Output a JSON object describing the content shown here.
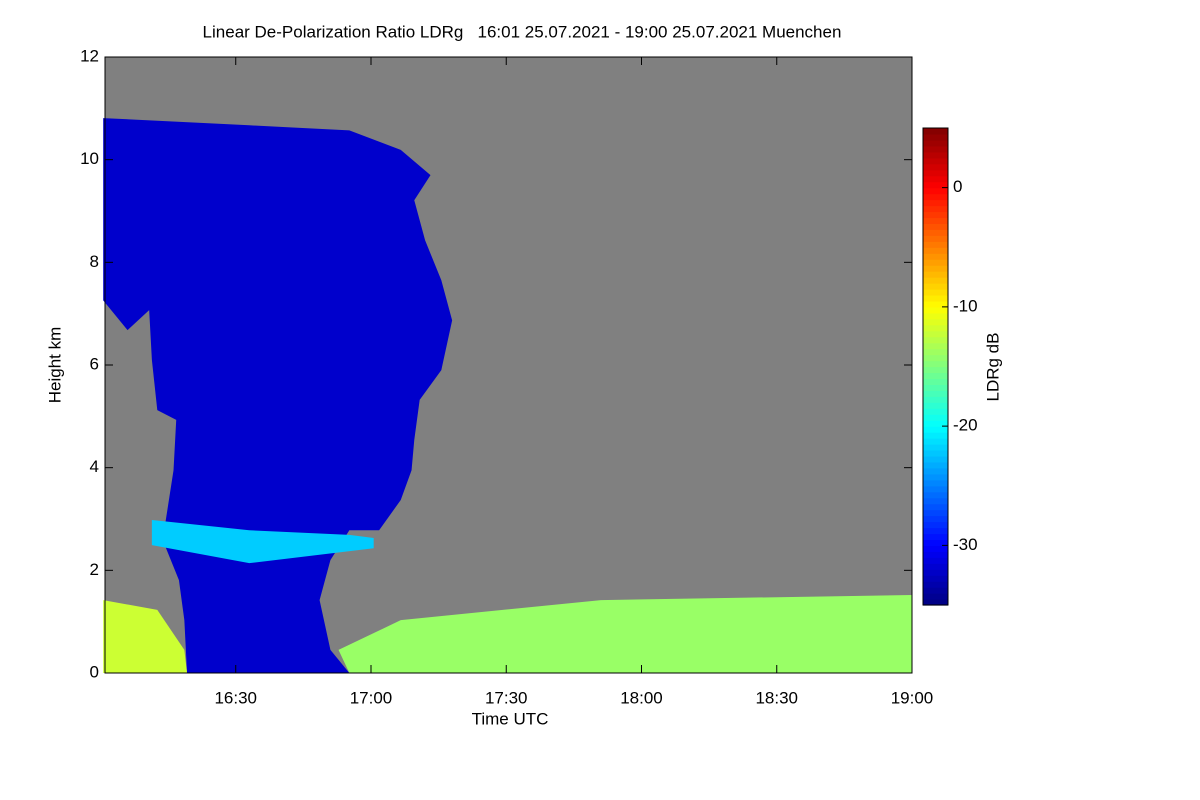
{
  "chart_data": {
    "type": "heatmap",
    "title": "Linear De-Polarization Ratio LDRg   16:01 25.07.2021 - 19:00 25.07.2021 Muenchen",
    "x_label": "Time UTC",
    "y_label": "Height km",
    "xlim": [
      16.0167,
      19.0
    ],
    "xticks": [
      {
        "value": 16.5,
        "label": "16:30"
      },
      {
        "value": 17.0,
        "label": "17:00"
      },
      {
        "value": 17.5,
        "label": "17:30"
      },
      {
        "value": 18.0,
        "label": "18:00"
      },
      {
        "value": 18.5,
        "label": "18:30"
      },
      {
        "value": 19.0,
        "label": "19:00"
      }
    ],
    "ylim": [
      0,
      12
    ],
    "yticks": [
      0,
      2,
      4,
      6,
      8,
      10,
      12
    ],
    "no_data_color": "#808080",
    "colorbar": {
      "label": "LDRg dB",
      "zlim": [
        -35,
        5
      ],
      "ticks": [
        0,
        -10,
        -20,
        -30
      ],
      "colormap": "jet"
    },
    "regions": [
      {
        "value": -32,
        "x": [
          16.01,
          16.01,
          16.1,
          16.18,
          16.19,
          16.21,
          16.28,
          16.27,
          16.23,
          16.29,
          16.31,
          16.32,
          16.92,
          16.85,
          16.81,
          16.85,
          16.92,
          17.03,
          17.11,
          17.15,
          17.16,
          17.18,
          17.26,
          17.3,
          17.26,
          17.2,
          17.16,
          17.22,
          17.11,
          16.92,
          16.55
        ],
        "y": [
          10.81,
          7.26,
          6.68,
          7.07,
          6.1,
          5.12,
          4.93,
          3.95,
          2.59,
          1.81,
          1.03,
          0,
          0,
          0.45,
          1.42,
          2.2,
          2.78,
          2.78,
          3.37,
          3.95,
          4.54,
          5.32,
          5.9,
          6.87,
          7.65,
          8.43,
          9.21,
          9.7,
          10.19,
          10.57,
          10.67
        ]
      },
      {
        "value": -22,
        "x": [
          16.19,
          16.55,
          16.92,
          17.01,
          17.01,
          16.55,
          16.19
        ],
        "y": [
          2.98,
          2.78,
          2.69,
          2.63,
          2.43,
          2.14,
          2.49
        ]
      },
      {
        "value": -12,
        "x": [
          16.01,
          16.21,
          16.31,
          16.32,
          16.01
        ],
        "y": [
          1.42,
          1.23,
          0.45,
          0,
          0
        ]
      },
      {
        "value": -14,
        "x": [
          16.88,
          17.11,
          17.85,
          19.0,
          19.0,
          16.92
        ],
        "y": [
          0.45,
          1.03,
          1.42,
          1.52,
          0,
          0
        ]
      }
    ]
  }
}
